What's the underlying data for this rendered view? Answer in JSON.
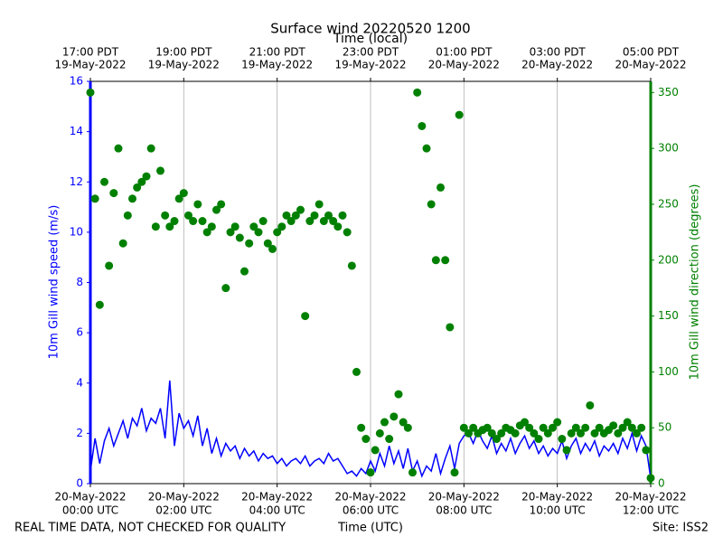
{
  "chart_data": {
    "type": "line",
    "title": "Surface wind 20220520 1200",
    "x2label": "Time (local)",
    "xlabel": "Time (UTC)",
    "ylabel": "10m Gill wind speed (m/s)",
    "y2label": "10m Gill wind direction (degrees)",
    "footer_left": "REAL TIME DATA, NOT CHECKED FOR QUALITY",
    "footer_right": "Site: ISS2",
    "grid": "x",
    "xlim": [
      0,
      12
    ],
    "xticks": [
      {
        "value": 0,
        "label": [
          "20-May-2022",
          "00:00 UTC"
        ]
      },
      {
        "value": 2,
        "label": [
          "20-May-2022",
          "02:00 UTC"
        ]
      },
      {
        "value": 4,
        "label": [
          "20-May-2022",
          "04:00 UTC"
        ]
      },
      {
        "value": 6,
        "label": [
          "20-May-2022",
          "06:00 UTC"
        ]
      },
      {
        "value": 8,
        "label": [
          "20-May-2022",
          "08:00 UTC"
        ]
      },
      {
        "value": 10,
        "label": [
          "20-May-2022",
          "10:00 UTC"
        ]
      },
      {
        "value": 12,
        "label": [
          "20-May-2022",
          "12:00 UTC"
        ]
      }
    ],
    "x2ticks": [
      {
        "value": 0,
        "label": [
          "17:00 PDT",
          "19-May-2022"
        ]
      },
      {
        "value": 2,
        "label": [
          "19:00 PDT",
          "19-May-2022"
        ]
      },
      {
        "value": 4,
        "label": [
          "21:00 PDT",
          "19-May-2022"
        ]
      },
      {
        "value": 6,
        "label": [
          "23:00 PDT",
          "19-May-2022"
        ]
      },
      {
        "value": 8,
        "label": [
          "01:00 PDT",
          "20-May-2022"
        ]
      },
      {
        "value": 10,
        "label": [
          "03:00 PDT",
          "20-May-2022"
        ]
      },
      {
        "value": 12,
        "label": [
          "05:00 PDT",
          "20-May-2022"
        ]
      }
    ],
    "ylim": [
      0,
      16
    ],
    "yticks": [
      0,
      2,
      4,
      6,
      8,
      10,
      12,
      14,
      16
    ],
    "y2lim": [
      0,
      360
    ],
    "y2ticks": [
      0,
      50,
      100,
      150,
      200,
      250,
      300,
      350
    ],
    "x": [
      0,
      0.1,
      0.2,
      0.3,
      0.4,
      0.5,
      0.6,
      0.7,
      0.8,
      0.9,
      1,
      1.1,
      1.2,
      1.3,
      1.4,
      1.5,
      1.6,
      1.7,
      1.8,
      1.9,
      2,
      2.1,
      2.2,
      2.3,
      2.4,
      2.5,
      2.6,
      2.7,
      2.8,
      2.9,
      3,
      3.1,
      3.2,
      3.3,
      3.4,
      3.5,
      3.6,
      3.7,
      3.8,
      3.9,
      4,
      4.1,
      4.2,
      4.3,
      4.4,
      4.5,
      4.6,
      4.7,
      4.8,
      4.9,
      5,
      5.1,
      5.2,
      5.3,
      5.4,
      5.5,
      5.6,
      5.7,
      5.8,
      5.9,
      6,
      6.1,
      6.2,
      6.3,
      6.4,
      6.5,
      6.6,
      6.7,
      6.8,
      6.9,
      7,
      7.1,
      7.2,
      7.3,
      7.4,
      7.5,
      7.6,
      7.7,
      7.8,
      7.9,
      8,
      8.1,
      8.2,
      8.3,
      8.4,
      8.5,
      8.6,
      8.7,
      8.8,
      8.9,
      9,
      9.1,
      9.2,
      9.3,
      9.4,
      9.5,
      9.6,
      9.7,
      9.8,
      9.9,
      10,
      10.1,
      10.2,
      10.3,
      10.4,
      10.5,
      10.6,
      10.7,
      10.8,
      10.9,
      11,
      11.1,
      11.2,
      11.3,
      11.4,
      11.5,
      11.6,
      11.7,
      11.8,
      11.9,
      12
    ],
    "series": [
      {
        "color": "#0000ff",
        "style": "line",
        "values": [
          0.5,
          1.8,
          0.8,
          1.7,
          2.2,
          1.5,
          2.0,
          2.5,
          1.8,
          2.6,
          2.3,
          3.0,
          2.1,
          2.6,
          2.4,
          3.0,
          1.8,
          4.1,
          1.5,
          2.8,
          2.2,
          2.5,
          1.9,
          2.7,
          1.5,
          2.2,
          1.2,
          1.8,
          1.1,
          1.6,
          1.3,
          1.5,
          1.0,
          1.4,
          1.1,
          1.3,
          0.9,
          1.2,
          1.0,
          1.1,
          0.8,
          1.0,
          0.7,
          0.9,
          1.0,
          0.8,
          1.1,
          0.7,
          0.9,
          1.0,
          0.8,
          1.2,
          0.9,
          1.0,
          0.7,
          0.4,
          0.5,
          0.3,
          0.6,
          0.4,
          0.9,
          0.5,
          1.2,
          0.7,
          1.5,
          0.8,
          1.3,
          0.6,
          1.4,
          0.5,
          0.9,
          0.3,
          0.7,
          0.5,
          1.2,
          0.4,
          1.0,
          1.5,
          0.6,
          1.6,
          1.9,
          2.0,
          1.6,
          2.1,
          1.7,
          1.4,
          1.9,
          1.2,
          1.6,
          1.3,
          1.8,
          1.2,
          1.6,
          1.9,
          1.4,
          1.7,
          1.2,
          1.5,
          1.1,
          1.4,
          1.2,
          1.7,
          1.0,
          1.5,
          1.8,
          1.2,
          1.6,
          1.3,
          1.7,
          1.1,
          1.5,
          1.3,
          1.6,
          1.2,
          1.8,
          1.4,
          2.0,
          1.3,
          1.9,
          1.5,
          0.2
        ]
      },
      {
        "color": "#008000",
        "style": "markers",
        "axis": "y2",
        "values": [
          350,
          255,
          160,
          270,
          195,
          260,
          300,
          215,
          240,
          255,
          265,
          270,
          275,
          300,
          230,
          280,
          240,
          230,
          235,
          255,
          260,
          240,
          235,
          250,
          235,
          225,
          230,
          245,
          250,
          175,
          225,
          230,
          220,
          190,
          215,
          230,
          225,
          235,
          215,
          210,
          225,
          230,
          240,
          235,
          240,
          245,
          150,
          235,
          240,
          250,
          235,
          240,
          235,
          230,
          240,
          225,
          195,
          100,
          50,
          40,
          10,
          30,
          45,
          55,
          40,
          60,
          80,
          55,
          50,
          10,
          350,
          320,
          300,
          250,
          200,
          265,
          200,
          140,
          10,
          330,
          50,
          45,
          50,
          45,
          48,
          50,
          45,
          40,
          45,
          50,
          48,
          45,
          52,
          55,
          50,
          45,
          40,
          50,
          45,
          50,
          55,
          40,
          30,
          45,
          50,
          45,
          50,
          70,
          45,
          50,
          45,
          48,
          52,
          45,
          50,
          55,
          50,
          45,
          50,
          30,
          5
        ]
      }
    ]
  }
}
